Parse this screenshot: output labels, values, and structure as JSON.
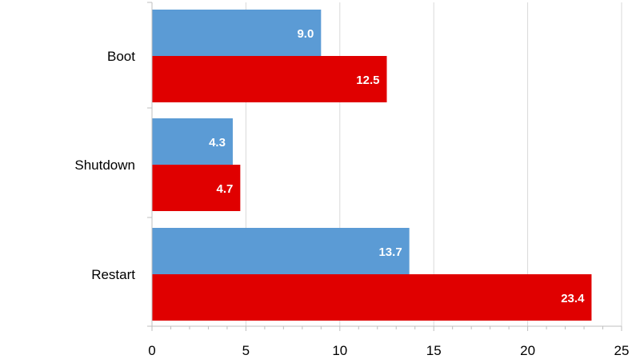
{
  "chart_data": {
    "type": "bar",
    "orientation": "horizontal",
    "categories": [
      "Boot",
      "Shutdown",
      "Restart"
    ],
    "series": [
      {
        "color": "#5b9bd5",
        "values": [
          9.0,
          4.3,
          13.7
        ],
        "labels": [
          "9.0",
          "4.3",
          "13.7"
        ]
      },
      {
        "color": "#e00000",
        "values": [
          12.5,
          4.7,
          23.4
        ],
        "labels": [
          "12.5",
          "4.7",
          "23.4"
        ]
      }
    ],
    "xlim": [
      0,
      25
    ],
    "xticks": [
      0,
      5,
      10,
      15,
      20,
      25
    ],
    "xtick_labels": [
      "0",
      "5",
      "10",
      "15",
      "20",
      "25"
    ],
    "title": "",
    "xlabel": "",
    "ylabel": "",
    "grid": "vertical",
    "legend": "none"
  }
}
